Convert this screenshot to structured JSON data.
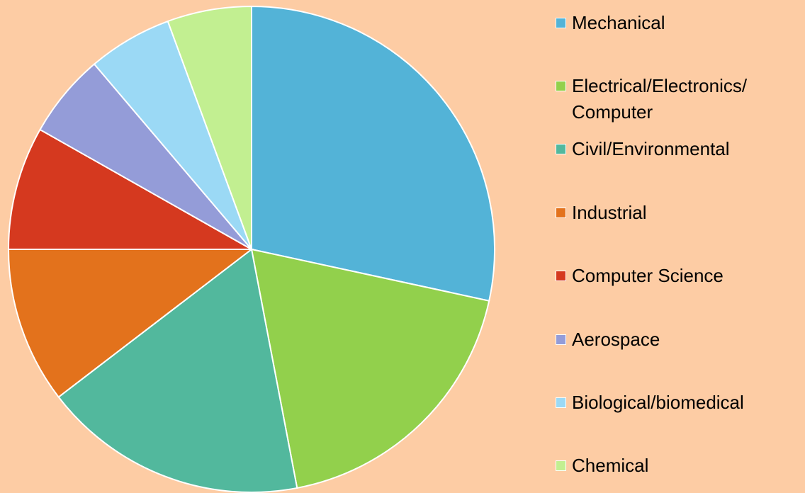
{
  "chart_data": {
    "type": "pie",
    "categories": [
      "Mechanical",
      "Electrical/Electronics/ Computer",
      "Civil/Environmental",
      "Industrial",
      "Computer Science",
      "Aerospace",
      "Biological/biomedical",
      "Chemical"
    ],
    "values": [
      28.4,
      18.6,
      17.6,
      10.4,
      8.2,
      5.6,
      5.6,
      5.6
    ],
    "colors": [
      "#53b3d7",
      "#92d04c",
      "#52b89d",
      "#e3721c",
      "#d5391f",
      "#949cd8",
      "#9bd9f5",
      "#c2ef91"
    ],
    "legend": "right"
  }
}
